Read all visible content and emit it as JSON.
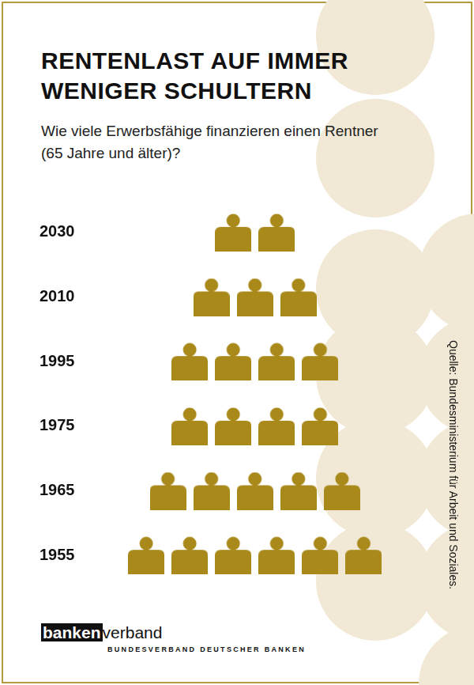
{
  "chart_data": {
    "type": "pictogram",
    "title": "RENTENLAST AUF IMMER WENIGER SCHULTERN",
    "subtitle": "Wie viele Erwerbsfähige finanzieren einen Rentner (65 Jahre und älter)?",
    "categories": [
      "2030",
      "2010",
      "1995",
      "1975",
      "1965",
      "1955"
    ],
    "values": [
      2,
      3,
      4,
      4,
      5,
      6
    ],
    "color": "#a8891a",
    "grid": false,
    "tick_labels": "y",
    "source": "Quelle: Bundesministerium für Arbeit und Soziales."
  },
  "logo": {
    "name_bold": "banken",
    "name": "verband",
    "subtitle": "BUNDESVERBAND DEUTSCHER BANKEN"
  }
}
